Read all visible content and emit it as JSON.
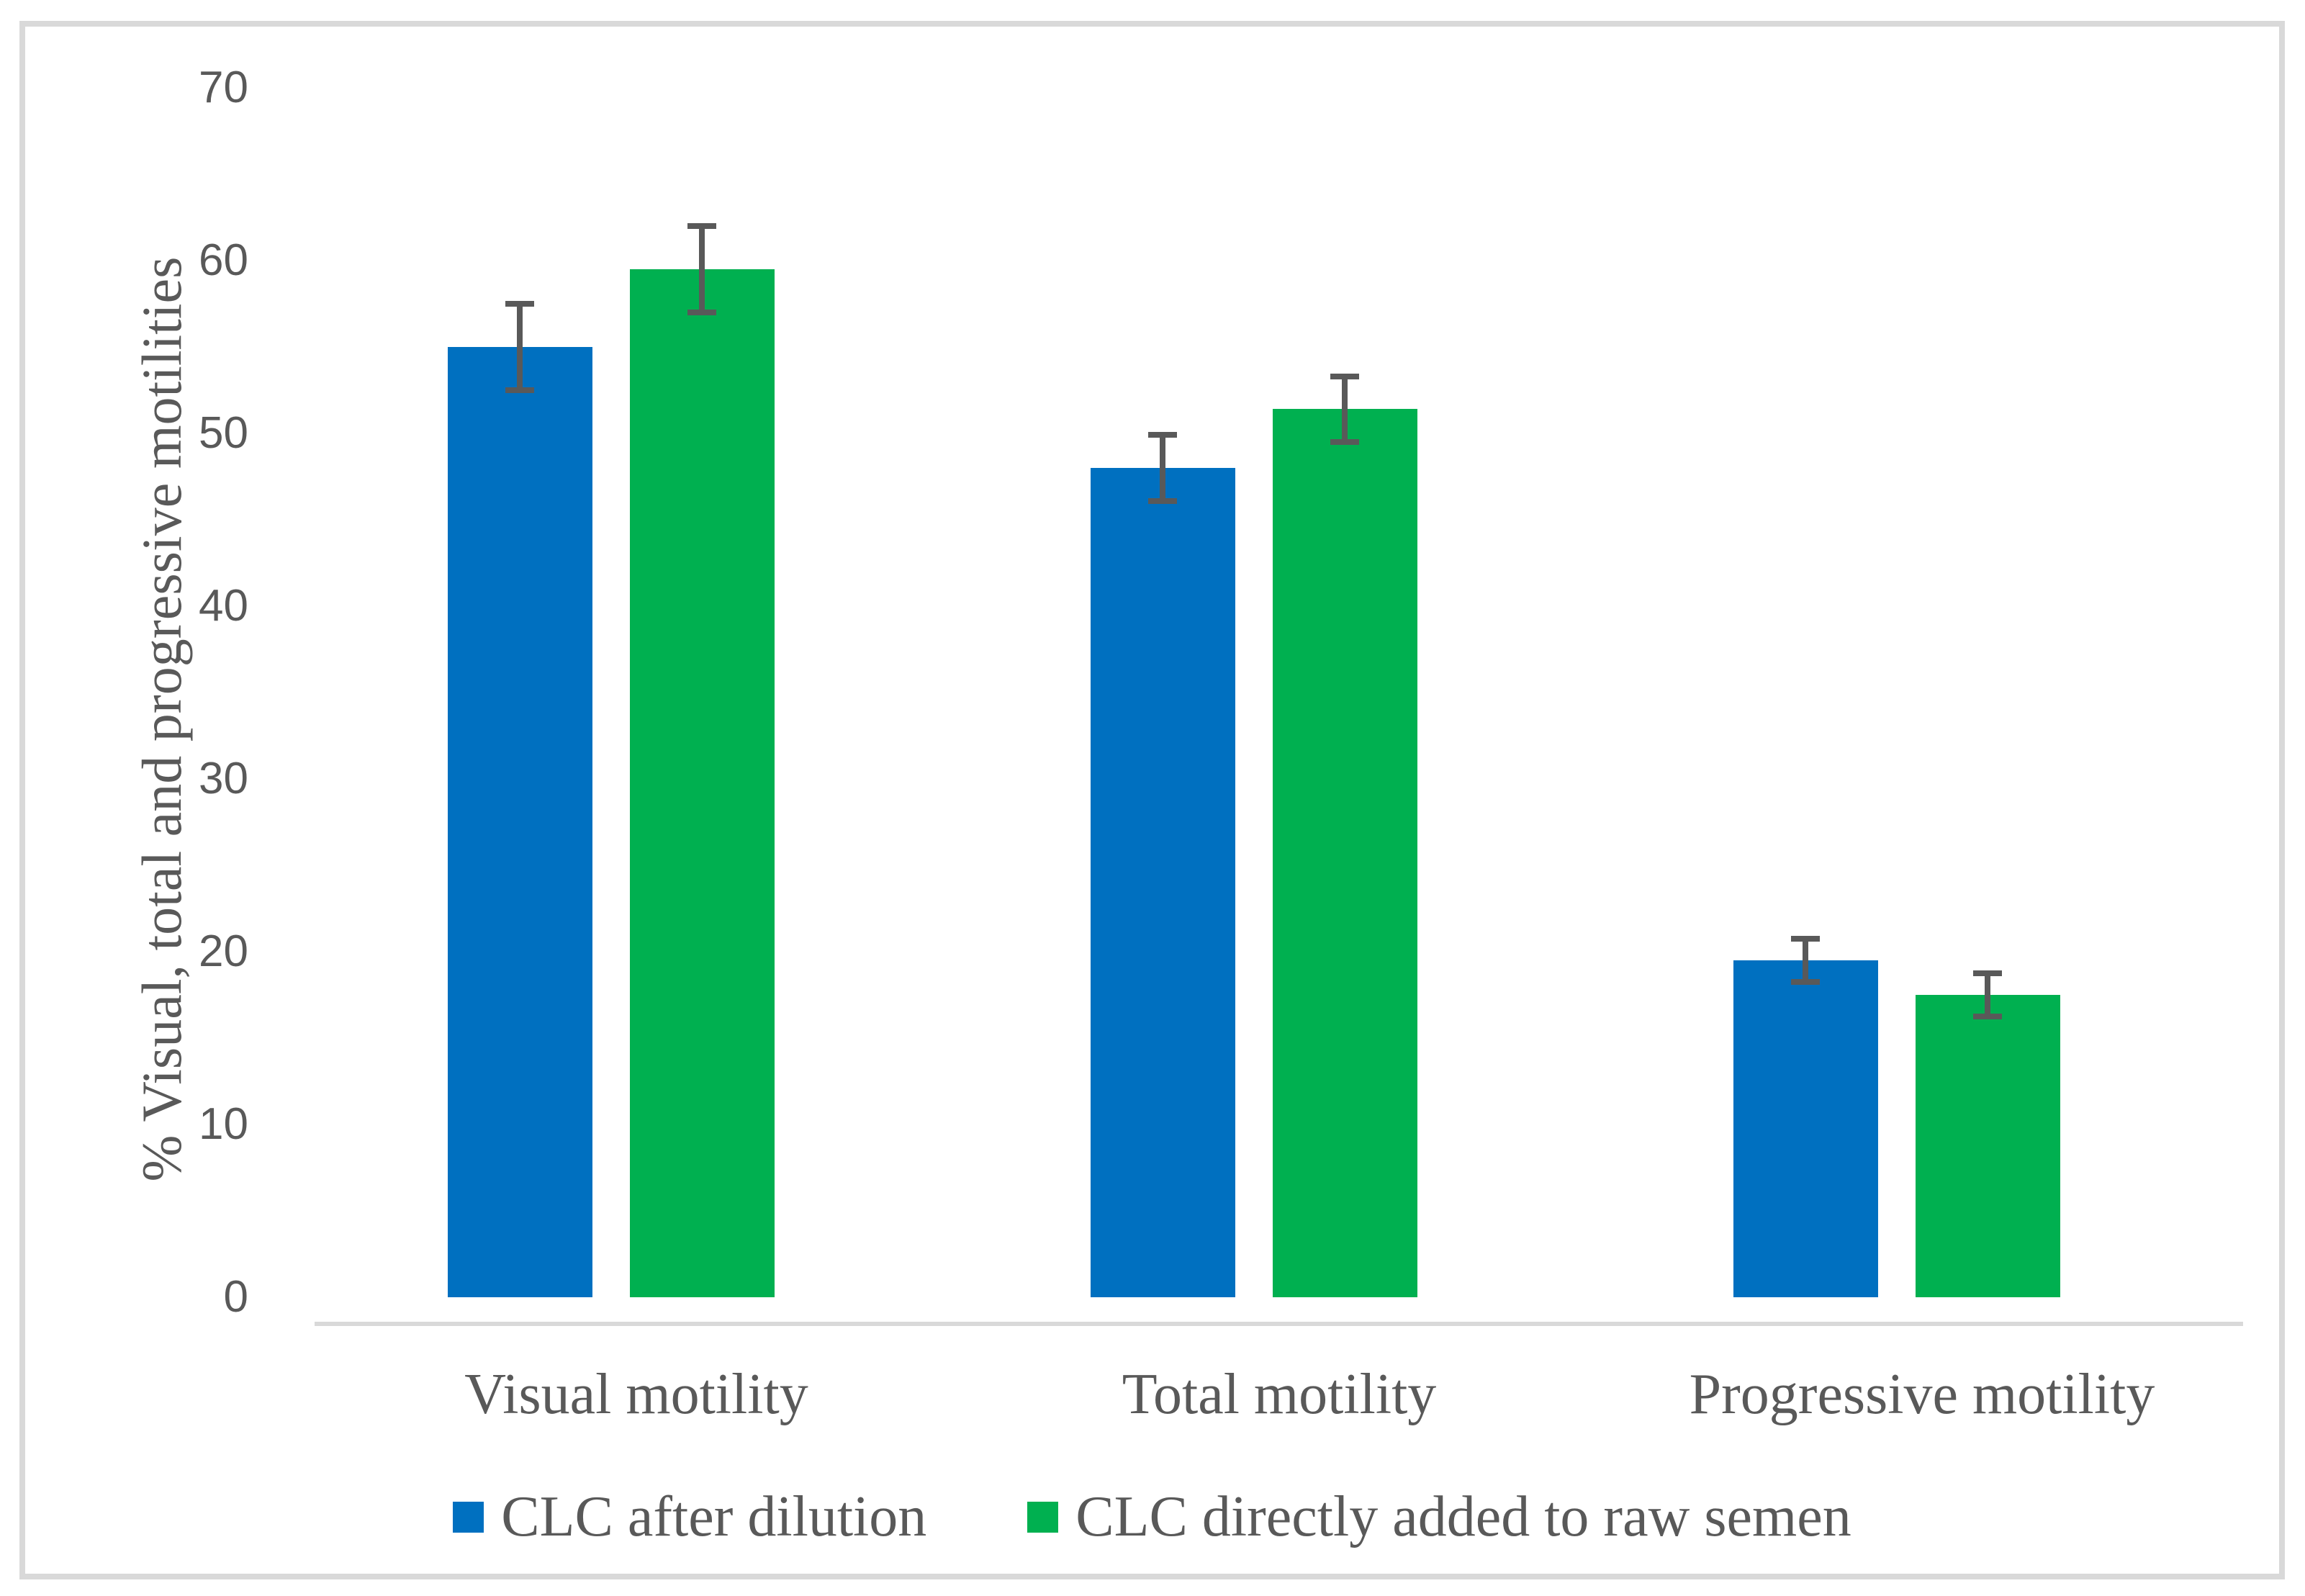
{
  "chart_data": {
    "type": "bar",
    "categories": [
      "Visual motility",
      "Total motility",
      "Progressive motility"
    ],
    "series": [
      {
        "name": "CLC after dilution",
        "color": "#0070C0",
        "values": [
          55,
          48,
          19.5
        ],
        "errors": [
          2.5,
          1.9,
          1.25
        ]
      },
      {
        "name": "CLC directly added to raw semen",
        "color": "#00B050",
        "values": [
          59.5,
          51.4,
          17.5
        ],
        "errors": [
          2.5,
          1.9,
          1.25
        ]
      }
    ],
    "title": "",
    "xlabel": "",
    "ylabel": "% Visual, total and progressive motilities",
    "ylim": [
      0,
      70
    ],
    "ytick_labels": [
      "70",
      "60",
      "50",
      "40",
      "30",
      "20",
      "10",
      "0"
    ],
    "grid": false,
    "legend_position": "bottom",
    "error_bar_color": "#595959",
    "axis_line_color": "#D9D9D9",
    "frame_border_color": "#D9D9D9",
    "text_color": "#595959"
  }
}
